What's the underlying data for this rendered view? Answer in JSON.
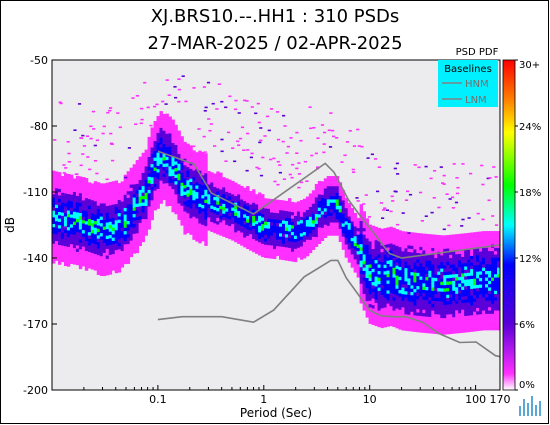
{
  "chart_data": {
    "type": "heatmap",
    "title": "XJ.BRS10.--.HH1 : 310 PSDs",
    "subtitle": "27-MAR-2025 / 02-APR-2025",
    "xlabel": "Period (Sec)",
    "ylabel": "dB",
    "x_scale": "log",
    "xlim": [
      0.01,
      170
    ],
    "ylim": [
      -200,
      -50
    ],
    "x_ticks": [
      "0.1",
      "1",
      "10",
      "100",
      "170"
    ],
    "y_ticks": [
      "-50",
      "-80",
      "-110",
      "-140",
      "-170",
      "-200"
    ],
    "colorbar": {
      "label": "PSD PDF",
      "ticks": [
        "30+",
        "24%",
        "18%",
        "12%",
        "6%",
        "0%"
      ],
      "colors": [
        "#ffffff",
        "#ff30ff",
        "#5a00d8",
        "#0000ff",
        "#00ffff",
        "#00ff00",
        "#ffff00",
        "#ff8000",
        "#ff0000"
      ]
    },
    "legend": {
      "title": "Baselines",
      "entries": [
        "HNM",
        "LNM"
      ],
      "background": "#00f0ff",
      "placement": "top-right"
    },
    "series": [
      {
        "name": "HNM",
        "x": [
          0.1,
          0.22,
          0.32,
          0.8,
          3.8,
          4.6,
          6.3,
          7.9,
          15.4,
          20,
          354.8
        ],
        "y": [
          -91.5,
          -97.4,
          -110.5,
          -120.0,
          -97.0,
          -101.0,
          -113.5,
          -120.0,
          -138.0,
          -140.0,
          -132.0
        ]
      },
      {
        "name": "LNM",
        "x": [
          0.1,
          0.17,
          0.4,
          0.8,
          1.24,
          2.4,
          4.3,
          5.0,
          6.0,
          10.0,
          12.6,
          15.9,
          21.9,
          31.6,
          45.0,
          70.8,
          101.0,
          154.0,
          328.0
        ],
        "y": [
          -168.0,
          -166.7,
          -166.7,
          -169.2,
          -163.7,
          -148.6,
          -141.1,
          -141.1,
          -149.0,
          -163.8,
          -166.2,
          -166.7,
          -166.7,
          -169.2,
          -174.3,
          -178.4,
          -178.2,
          -184.4,
          -187.5
        ]
      },
      {
        "name": "",
        "x": [
          0.01,
          0.02,
          0.03,
          0.045,
          0.06,
          0.075,
          0.09,
          0.11,
          0.14,
          0.18,
          0.25,
          0.35,
          0.5,
          0.7,
          1.0,
          1.5,
          2.0,
          2.5,
          3.0,
          4.0,
          5.0,
          6.0,
          8.0,
          10.0,
          13.0,
          16.0,
          20.0,
          30.0,
          50.0,
          80.0,
          120.0,
          170.0
        ],
        "y": [
          -121,
          -124,
          -127,
          -125,
          -118,
          -112,
          -100,
          -93,
          -98,
          -108,
          -112,
          -115,
          -118,
          -122,
          -126,
          -127,
          -128,
          -126,
          -122,
          -116,
          -116,
          -126,
          -136,
          -147,
          -149,
          -148,
          -150,
          -151,
          -152,
          -151,
          -150,
          -150
        ]
      }
    ]
  }
}
